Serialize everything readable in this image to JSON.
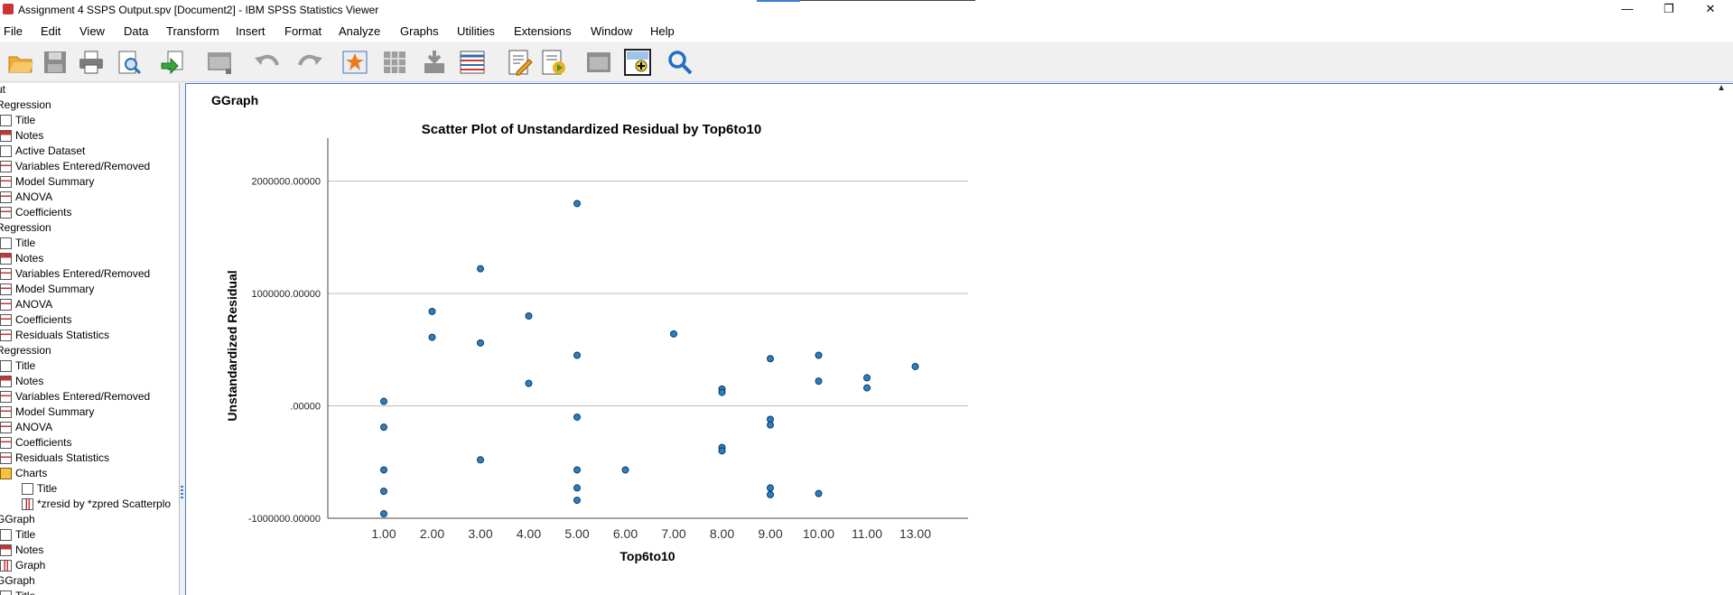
{
  "window": {
    "title": "Assignment 4 SSPS Output.spv [Document2] - IBM SPSS Statistics Viewer",
    "minimize": "—",
    "maximize": "❐",
    "close": "✕"
  },
  "menu": [
    "File",
    "Edit",
    "View",
    "Data",
    "Transform",
    "Insert",
    "Format",
    "Analyze",
    "Graphs",
    "Utilities",
    "Extensions",
    "Window",
    "Help"
  ],
  "toolbar_icons": [
    "open-folder-icon",
    "save-icon",
    "print-icon",
    "print-preview-icon",
    "export-icon",
    "recall-dialog-icon",
    "undo-icon",
    "redo-icon",
    "goto-data-icon",
    "goto-case-icon",
    "goto-variable-icon",
    "variables-icon",
    "designate-window-icon",
    "run-script-icon",
    "show-outline-icon",
    "insert-output-icon",
    "search-icon"
  ],
  "navigator": [
    {
      "label": "ut",
      "icon": "none",
      "indent": 0
    },
    {
      "label": "Regression",
      "icon": "none",
      "indent": 0
    },
    {
      "label": "Title",
      "icon": "doc",
      "indent": 1
    },
    {
      "label": "Notes",
      "icon": "notes",
      "indent": 1
    },
    {
      "label": "Active Dataset",
      "icon": "doc",
      "indent": 1
    },
    {
      "label": "Variables Entered/Removed",
      "icon": "table",
      "indent": 1
    },
    {
      "label": "Model Summary",
      "icon": "table",
      "indent": 1
    },
    {
      "label": "ANOVA",
      "icon": "table",
      "indent": 1
    },
    {
      "label": "Coefficients",
      "icon": "table",
      "indent": 1
    },
    {
      "label": "Regression",
      "icon": "none",
      "indent": 0
    },
    {
      "label": "Title",
      "icon": "doc",
      "indent": 1
    },
    {
      "label": "Notes",
      "icon": "notes",
      "indent": 1
    },
    {
      "label": "Variables Entered/Removed",
      "icon": "table",
      "indent": 1
    },
    {
      "label": "Model Summary",
      "icon": "table",
      "indent": 1
    },
    {
      "label": "ANOVA",
      "icon": "table",
      "indent": 1
    },
    {
      "label": "Coefficients",
      "icon": "table",
      "indent": 1
    },
    {
      "label": "Residuals Statistics",
      "icon": "table",
      "indent": 1
    },
    {
      "label": "Regression",
      "icon": "none",
      "indent": 0
    },
    {
      "label": "Title",
      "icon": "doc",
      "indent": 1
    },
    {
      "label": "Notes",
      "icon": "notes",
      "indent": 1
    },
    {
      "label": "Variables Entered/Removed",
      "icon": "table",
      "indent": 1
    },
    {
      "label": "Model Summary",
      "icon": "table",
      "indent": 1
    },
    {
      "label": "ANOVA",
      "icon": "table",
      "indent": 1
    },
    {
      "label": "Coefficients",
      "icon": "table",
      "indent": 1
    },
    {
      "label": "Residuals Statistics",
      "icon": "table",
      "indent": 1
    },
    {
      "label": "Charts",
      "icon": "folder",
      "indent": 1
    },
    {
      "label": "Title",
      "icon": "doc",
      "indent": 2
    },
    {
      "label": "*zresid by *zpred Scatterplo",
      "icon": "chart",
      "indent": 2
    },
    {
      "label": "GGraph",
      "icon": "none",
      "indent": 0
    },
    {
      "label": "Title",
      "icon": "doc",
      "indent": 1
    },
    {
      "label": "Notes",
      "icon": "notes",
      "indent": 1
    },
    {
      "label": "Graph",
      "icon": "chart",
      "indent": 1
    },
    {
      "label": "GGraph",
      "icon": "none",
      "indent": 0
    },
    {
      "label": "Title",
      "icon": "doc",
      "indent": 1
    }
  ],
  "content": {
    "heading": "GGraph"
  },
  "chart_data": {
    "type": "scatter",
    "title": "Scatter Plot of Unstandardized Residual by Top6to10",
    "xlabel": "Top6to10",
    "ylabel": "Unstandardized Residual",
    "x_categories": [
      "1.00",
      "2.00",
      "3.00",
      "4.00",
      "5.00",
      "6.00",
      "7.00",
      "8.00",
      "9.00",
      "10.00",
      "11.00",
      "13.00"
    ],
    "y_ticks": [
      {
        "value": 2000000,
        "label": "2000000.00000"
      },
      {
        "value": 1000000,
        "label": "1000000.00000"
      },
      {
        "value": 0,
        "label": ".00000"
      },
      {
        "value": -1000000,
        "label": "-1000000.00000"
      }
    ],
    "ylim": [
      -1000000,
      2350000
    ],
    "grid": "horizontal",
    "point_color": "#2a7fc1",
    "points": [
      {
        "x": "1.00",
        "y": 40000
      },
      {
        "x": "1.00",
        "y": -190000
      },
      {
        "x": "1.00",
        "y": -570000
      },
      {
        "x": "1.00",
        "y": -760000
      },
      {
        "x": "1.00",
        "y": -960000
      },
      {
        "x": "2.00",
        "y": 840000
      },
      {
        "x": "2.00",
        "y": 610000
      },
      {
        "x": "3.00",
        "y": 1220000
      },
      {
        "x": "3.00",
        "y": 560000
      },
      {
        "x": "3.00",
        "y": -480000
      },
      {
        "x": "4.00",
        "y": 800000
      },
      {
        "x": "4.00",
        "y": 200000
      },
      {
        "x": "5.00",
        "y": 1800000
      },
      {
        "x": "5.00",
        "y": 450000
      },
      {
        "x": "5.00",
        "y": -100000
      },
      {
        "x": "5.00",
        "y": -570000
      },
      {
        "x": "5.00",
        "y": -730000
      },
      {
        "x": "5.00",
        "y": -840000
      },
      {
        "x": "6.00",
        "y": -570000
      },
      {
        "x": "7.00",
        "y": 640000
      },
      {
        "x": "8.00",
        "y": 150000
      },
      {
        "x": "8.00",
        "y": 120000
      },
      {
        "x": "8.00",
        "y": -370000
      },
      {
        "x": "8.00",
        "y": -400000
      },
      {
        "x": "9.00",
        "y": 420000
      },
      {
        "x": "9.00",
        "y": -120000
      },
      {
        "x": "9.00",
        "y": -170000
      },
      {
        "x": "9.00",
        "y": -730000
      },
      {
        "x": "9.00",
        "y": -790000
      },
      {
        "x": "10.00",
        "y": 450000
      },
      {
        "x": "10.00",
        "y": 220000
      },
      {
        "x": "10.00",
        "y": -780000
      },
      {
        "x": "11.00",
        "y": 250000
      },
      {
        "x": "11.00",
        "y": 160000
      },
      {
        "x": "13.00",
        "y": 350000
      }
    ]
  }
}
